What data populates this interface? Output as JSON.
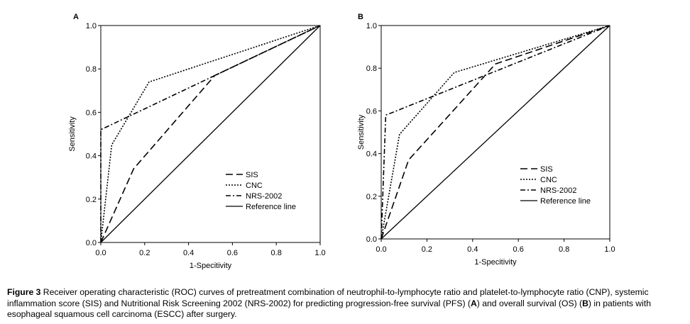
{
  "chart_data": [
    {
      "type": "line",
      "panel": "A",
      "xlabel": "1-Specitivity",
      "ylabel": "Sensitivity",
      "xlim": [
        0,
        1
      ],
      "ylim": [
        0,
        1
      ],
      "x_ticks": [
        "0.0",
        "0.2",
        "0.4",
        "0.6",
        "0.8",
        "1.0"
      ],
      "y_ticks": [
        "0.0",
        "0.2",
        "0.4",
        "0.6",
        "0.8",
        "1.0"
      ],
      "legend_position": "lower-right",
      "series": [
        {
          "name": "SIS",
          "style": "dashed",
          "x": [
            0,
            0.15,
            0.52,
            1.0
          ],
          "y": [
            0,
            0.34,
            0.77,
            1.0
          ]
        },
        {
          "name": "CNC",
          "style": "dotted",
          "x": [
            0,
            0.05,
            0.15,
            0.22,
            1.0
          ],
          "y": [
            0,
            0.45,
            0.62,
            0.74,
            1.0
          ]
        },
        {
          "name": "NRS-2002",
          "style": "dash-dot",
          "x": [
            0,
            0,
            1.0
          ],
          "y": [
            0,
            0.52,
            1.0
          ]
        },
        {
          "name": "Reference line",
          "style": "solid",
          "x": [
            0,
            1.0
          ],
          "y": [
            0,
            1.0
          ]
        }
      ]
    },
    {
      "type": "line",
      "panel": "B",
      "xlabel": "1-Specitivity",
      "ylabel": "Sensitivity",
      "xlim": [
        0,
        1
      ],
      "ylim": [
        0,
        1
      ],
      "x_ticks": [
        "0.0",
        "0.2",
        "0.4",
        "0.6",
        "0.8",
        "1.0"
      ],
      "y_ticks": [
        "0.0",
        "0.2",
        "0.4",
        "0.6",
        "0.8",
        "1.0"
      ],
      "legend_position": "lower-right",
      "series": [
        {
          "name": "SIS",
          "style": "dashed",
          "x": [
            0,
            0.12,
            0.5,
            1.0
          ],
          "y": [
            0,
            0.37,
            0.82,
            1.0
          ]
        },
        {
          "name": "CNC",
          "style": "dotted",
          "x": [
            0,
            0.08,
            0.32,
            1.0
          ],
          "y": [
            0,
            0.49,
            0.78,
            1.0
          ]
        },
        {
          "name": "NRS-2002",
          "style": "dash-dot",
          "x": [
            0,
            0.02,
            1.0
          ],
          "y": [
            0,
            0.58,
            1.0
          ]
        },
        {
          "name": "Reference line",
          "style": "solid",
          "x": [
            0,
            1.0
          ],
          "y": [
            0,
            1.0
          ]
        }
      ]
    }
  ],
  "caption": {
    "label": "Figure 3",
    "p1": " Receiver operating characteristic (ROC) curves of pretreatment combination of neutrophil-to-lymphocyte ratio and platelet-to-lymphocyte ratio (CNP), systemic inflammation score (SIS) and Nutritional Risk Screening 2002 (NRS-2002) for predicting progression-free survival (PFS) (",
    "a": "A",
    "p2": ") and overall survival (OS) (",
    "b": "B",
    "p3": ") in patients with esophageal squamous cell carcinoma (ESCC) after surgery."
  }
}
